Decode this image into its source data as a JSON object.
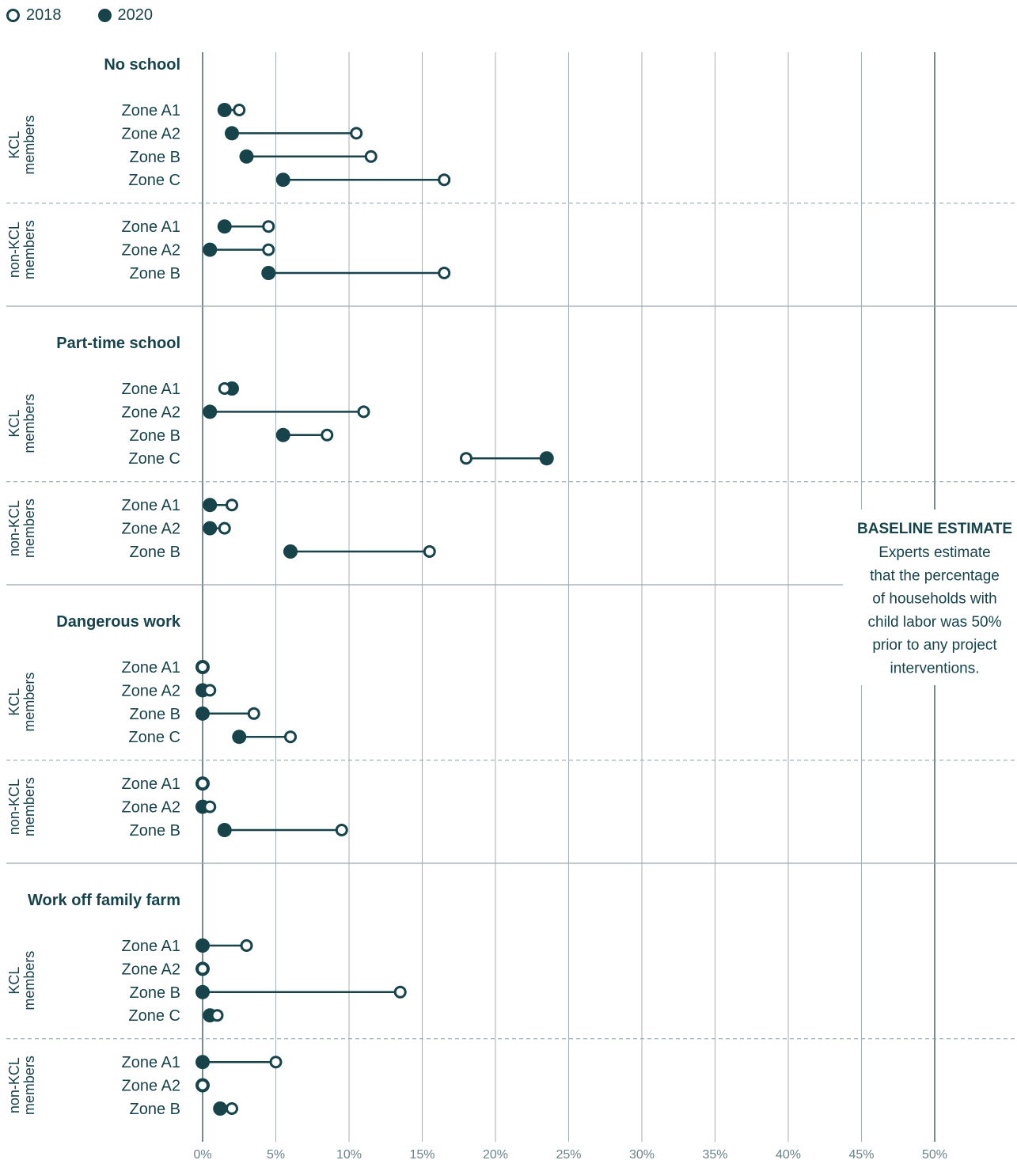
{
  "chart_data": {
    "type": "dumbbell",
    "legend": {
      "placement": "top-left",
      "items": [
        {
          "name": "2018",
          "marker": "open-circle"
        },
        {
          "name": "2020",
          "marker": "filled-circle"
        }
      ]
    },
    "x_ticks": [
      "0%",
      "5%",
      "10%",
      "15%",
      "20%",
      "25%",
      "30%",
      "35%",
      "40%",
      "45%",
      "50%"
    ],
    "xlim": [
      0,
      50
    ],
    "x_unit": "%",
    "grid": true,
    "colors": {
      "primary": "#17444b",
      "grid": "#a5b0b6",
      "text": "#17444b"
    },
    "annotation": {
      "at_x": 50,
      "title": "BASELINE ESTIMATE",
      "lines": [
        "Experts estimate",
        "that the percentage",
        "of households with",
        "child labor was 50%",
        "prior to any project",
        "interventions."
      ]
    },
    "sections": [
      {
        "title": "No school",
        "groups": [
          {
            "label": [
              "KCL",
              "members"
            ],
            "rows": [
              {
                "zone": "Zone A1",
                "v2018": 2.5,
                "v2020": 1.5
              },
              {
                "zone": "Zone A2",
                "v2018": 10.5,
                "v2020": 2.0
              },
              {
                "zone": "Zone B",
                "v2018": 11.5,
                "v2020": 3.0
              },
              {
                "zone": "Zone C",
                "v2018": 16.5,
                "v2020": 5.5
              }
            ]
          },
          {
            "label": [
              "non-KCL",
              "members"
            ],
            "rows": [
              {
                "zone": "Zone A1",
                "v2018": 4.5,
                "v2020": 1.5
              },
              {
                "zone": "Zone A2",
                "v2018": 4.5,
                "v2020": 0.5
              },
              {
                "zone": "Zone B",
                "v2018": 16.5,
                "v2020": 4.5
              }
            ]
          }
        ]
      },
      {
        "title": "Part-time school",
        "groups": [
          {
            "label": [
              "KCL",
              "members"
            ],
            "rows": [
              {
                "zone": "Zone A1",
                "v2018": 1.5,
                "v2020": 2.0
              },
              {
                "zone": "Zone A2",
                "v2018": 11.0,
                "v2020": 0.5
              },
              {
                "zone": "Zone B",
                "v2018": 8.5,
                "v2020": 5.5
              },
              {
                "zone": "Zone C",
                "v2018": 18.0,
                "v2020": 23.5
              }
            ]
          },
          {
            "label": [
              "non-KCL",
              "members"
            ],
            "rows": [
              {
                "zone": "Zone A1",
                "v2018": 2.0,
                "v2020": 0.5
              },
              {
                "zone": "Zone A2",
                "v2018": 1.5,
                "v2020": 0.5
              },
              {
                "zone": "Zone B",
                "v2018": 15.5,
                "v2020": 6.0
              }
            ]
          }
        ]
      },
      {
        "title": "Dangerous work",
        "groups": [
          {
            "label": [
              "KCL",
              "members"
            ],
            "rows": [
              {
                "zone": "Zone A1",
                "v2018": 0.0,
                "v2020": 0.0
              },
              {
                "zone": "Zone A2",
                "v2018": 0.5,
                "v2020": 0.0
              },
              {
                "zone": "Zone B",
                "v2018": 3.5,
                "v2020": 0.0
              },
              {
                "zone": "Zone C",
                "v2018": 6.0,
                "v2020": 2.5
              }
            ]
          },
          {
            "label": [
              "non-KCL",
              "members"
            ],
            "rows": [
              {
                "zone": "Zone A1",
                "v2018": 0.0,
                "v2020": 0.0
              },
              {
                "zone": "Zone A2",
                "v2018": 0.5,
                "v2020": 0.0
              },
              {
                "zone": "Zone B",
                "v2018": 9.5,
                "v2020": 1.5
              }
            ]
          }
        ]
      },
      {
        "title": "Work off family farm",
        "groups": [
          {
            "label": [
              "KCL",
              "members"
            ],
            "rows": [
              {
                "zone": "Zone A1",
                "v2018": 3.0,
                "v2020": 0.0
              },
              {
                "zone": "Zone A2",
                "v2018": 0.0,
                "v2020": 0.0
              },
              {
                "zone": "Zone B",
                "v2018": 13.5,
                "v2020": 0.0
              },
              {
                "zone": "Zone C",
                "v2018": 1.0,
                "v2020": 0.5
              }
            ]
          },
          {
            "label": [
              "non-KCL",
              "members"
            ],
            "rows": [
              {
                "zone": "Zone A1",
                "v2018": 5.0,
                "v2020": 0.0
              },
              {
                "zone": "Zone A2",
                "v2018": 0.0,
                "v2020": 0.0
              },
              {
                "zone": "Zone B",
                "v2018": 2.0,
                "v2020": 1.2
              }
            ]
          }
        ]
      }
    ]
  }
}
